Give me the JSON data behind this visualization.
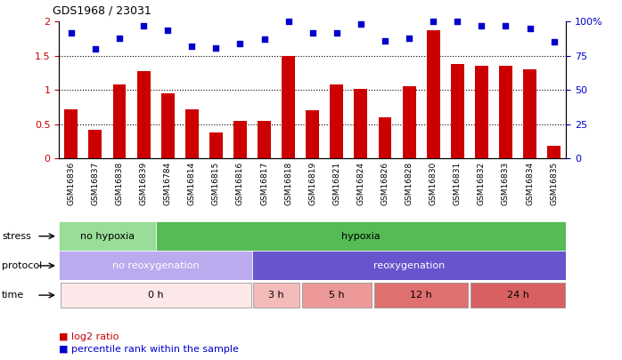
{
  "title": "GDS1968 / 23031",
  "samples": [
    "GSM16836",
    "GSM16837",
    "GSM16838",
    "GSM16839",
    "GSM16784",
    "GSM16814",
    "GSM16815",
    "GSM16816",
    "GSM16817",
    "GSM16818",
    "GSM16819",
    "GSM16821",
    "GSM16824",
    "GSM16826",
    "GSM16828",
    "GSM16830",
    "GSM16831",
    "GSM16832",
    "GSM16833",
    "GSM16834",
    "GSM16835"
  ],
  "log2_ratio": [
    0.72,
    0.42,
    1.08,
    1.28,
    0.95,
    0.72,
    0.38,
    0.55,
    0.55,
    1.5,
    0.7,
    1.08,
    1.02,
    0.6,
    1.05,
    1.88,
    1.38,
    1.35,
    1.35,
    1.3,
    0.18
  ],
  "percentile_raw": [
    92,
    80,
    88,
    97,
    94,
    82,
    81,
    84,
    87,
    100,
    92,
    92,
    98,
    86,
    88,
    100,
    100,
    97,
    97,
    95,
    85
  ],
  "bar_color": "#cc0000",
  "dot_color": "#0000cc",
  "ylim": [
    0,
    2
  ],
  "right_ylim": [
    0,
    100
  ],
  "yticks_left": [
    0,
    0.5,
    1.0,
    1.5,
    2.0
  ],
  "ytick_labels_left": [
    "0",
    "0.5",
    "1",
    "1.5",
    "2"
  ],
  "yticks_right": [
    0,
    25,
    50,
    75,
    100
  ],
  "ytick_labels_right": [
    "0",
    "25",
    "50",
    "75",
    "100%"
  ],
  "hlines": [
    0.5,
    1.0,
    1.5
  ],
  "stress_groups": [
    {
      "label": "no hypoxia",
      "start": 0,
      "end": 4,
      "color": "#99dd99"
    },
    {
      "label": "hypoxia",
      "start": 4,
      "end": 21,
      "color": "#55bb55"
    }
  ],
  "protocol_groups": [
    {
      "label": "no reoxygenation",
      "start": 0,
      "end": 8,
      "color": "#bbaaee"
    },
    {
      "label": "reoxygenation",
      "start": 8,
      "end": 21,
      "color": "#6655cc"
    }
  ],
  "time_groups": [
    {
      "label": "0 h",
      "start": 0,
      "end": 8,
      "color": "#fce8e8"
    },
    {
      "label": "3 h",
      "start": 8,
      "end": 10,
      "color": "#f4bbbb"
    },
    {
      "label": "5 h",
      "start": 10,
      "end": 13,
      "color": "#ee9999"
    },
    {
      "label": "12 h",
      "start": 13,
      "end": 17,
      "color": "#e07070"
    },
    {
      "label": "24 h",
      "start": 17,
      "end": 21,
      "color": "#d86060"
    }
  ],
  "row_labels": [
    "stress",
    "protocol",
    "time"
  ],
  "legend_red": "log2 ratio",
  "legend_blue": "percentile rank within the sample",
  "xtick_bg_color": "#cccccc"
}
